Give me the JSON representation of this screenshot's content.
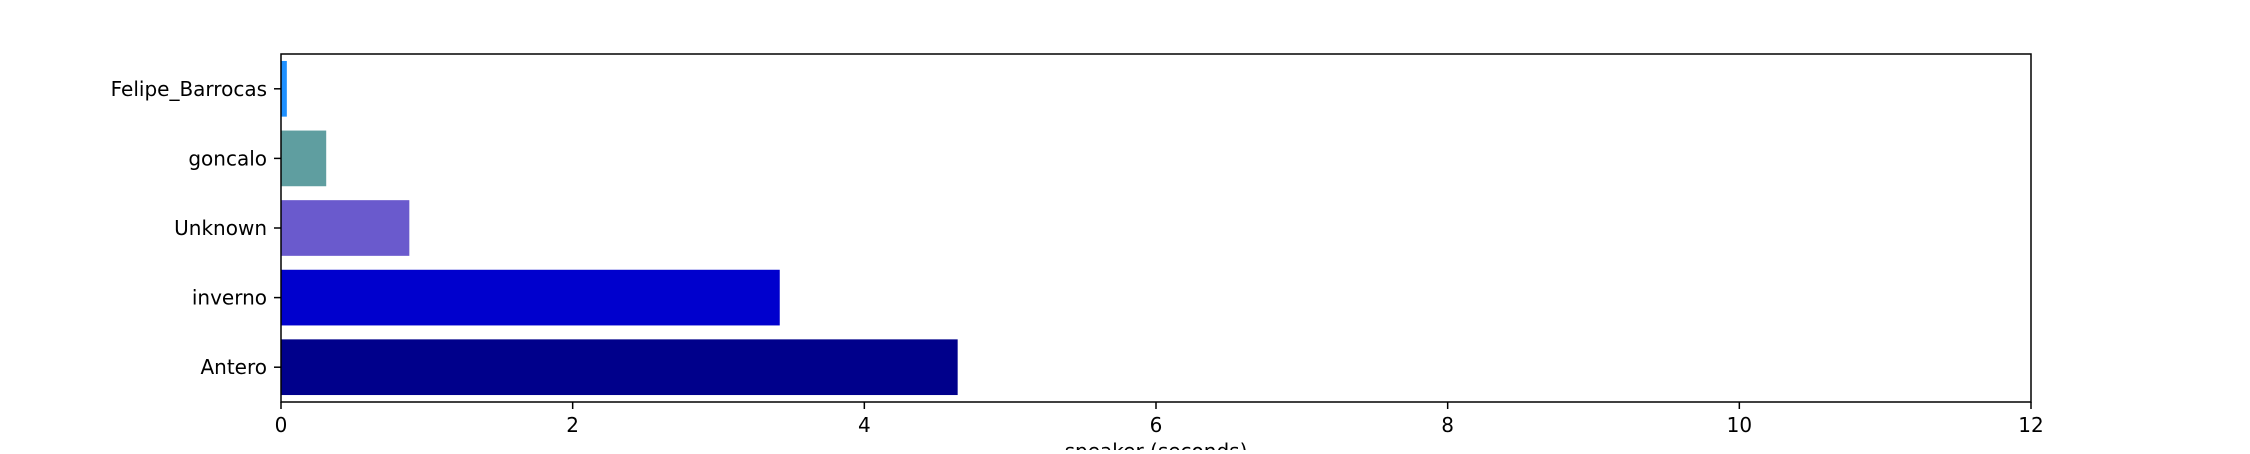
{
  "chart_data": {
    "type": "bar",
    "orientation": "horizontal",
    "categories": [
      "Felipe_Barrocas",
      "goncalo",
      "Unknown",
      "inverno",
      "Antero"
    ],
    "values": [
      0.04,
      0.31,
      0.88,
      3.42,
      4.64
    ],
    "colors": [
      "#1e90ff",
      "#5f9ea0",
      "#6a5acd",
      "#0000cd",
      "#00008b"
    ],
    "xlabel": "speaker (seconds)",
    "ylabel": "",
    "title": "",
    "xlim": [
      0,
      12
    ],
    "xticks": [
      0,
      2,
      4,
      6,
      8,
      10,
      12
    ],
    "grid": false,
    "legend": false
  }
}
